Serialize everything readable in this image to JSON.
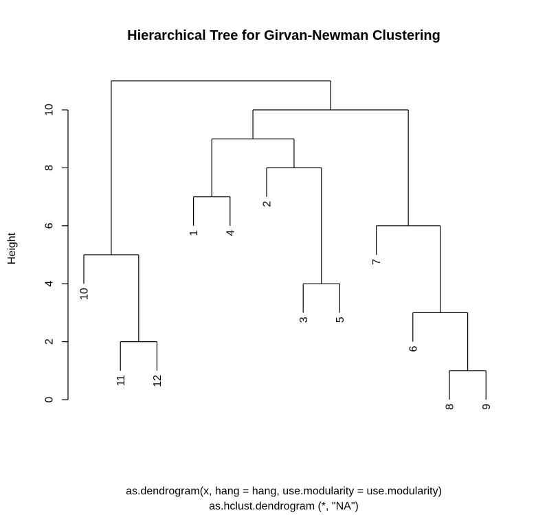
{
  "chart_data": {
    "type": "dendrogram",
    "title": "Hierarchical Tree for Girvan-Newman Clustering",
    "ylabel": "Height",
    "xlabel": "as.dendrogram(x, hang = hang, use.modularity = use.modularity)",
    "sublabel": "as.hclust.dendrogram (*, \"NA\")",
    "ylim": [
      0,
      11
    ],
    "yticks": [
      0,
      2,
      4,
      6,
      8,
      10
    ],
    "leaf_order": [
      "10",
      "11",
      "12",
      "1",
      "4",
      "2",
      "3",
      "5",
      "7",
      "6",
      "8",
      "9"
    ],
    "merges": [
      {
        "children": [
          "8",
          "9"
        ],
        "height": 1
      },
      {
        "children": [
          "11",
          "12"
        ],
        "height": 2
      },
      {
        "children": [
          "3",
          "5"
        ],
        "height": 4
      },
      {
        "children": [
          "6",
          "8+9"
        ],
        "height": 3
      },
      {
        "children": [
          "10",
          "11+12"
        ],
        "height": 5
      },
      {
        "children": [
          "7",
          "6+8+9"
        ],
        "height": 6
      },
      {
        "children": [
          "1",
          "4"
        ],
        "height": 7
      },
      {
        "children": [
          "2",
          "3+5"
        ],
        "height": 8
      },
      {
        "children": [
          "1+4",
          "2+3+5"
        ],
        "height": 9
      },
      {
        "children": [
          "1+4+2+3+5",
          "7+6+8+9"
        ],
        "height": 10
      },
      {
        "children": [
          "10+11+12",
          "rest"
        ],
        "height": 11
      }
    ],
    "tree": {
      "h": 11,
      "children": [
        {
          "h": 5,
          "children": [
            {
              "leaf": "10",
              "h": 4
            },
            {
              "h": 2,
              "children": [
                {
                  "leaf": "11",
                  "h": 1
                },
                {
                  "leaf": "12",
                  "h": 1
                }
              ]
            }
          ]
        },
        {
          "h": 10,
          "children": [
            {
              "h": 9,
              "children": [
                {
                  "h": 7,
                  "children": [
                    {
                      "leaf": "1",
                      "h": 6
                    },
                    {
                      "leaf": "4",
                      "h": 6
                    }
                  ]
                },
                {
                  "h": 8,
                  "children": [
                    {
                      "leaf": "2",
                      "h": 7
                    },
                    {
                      "h": 4,
                      "children": [
                        {
                          "leaf": "3",
                          "h": 3
                        },
                        {
                          "leaf": "5",
                          "h": 3
                        }
                      ]
                    }
                  ]
                }
              ]
            },
            {
              "h": 6,
              "children": [
                {
                  "leaf": "7",
                  "h": 5
                },
                {
                  "h": 3,
                  "children": [
                    {
                      "leaf": "6",
                      "h": 2
                    },
                    {
                      "h": 1,
                      "children": [
                        {
                          "leaf": "8",
                          "h": 0
                        },
                        {
                          "leaf": "9",
                          "h": 0
                        }
                      ]
                    }
                  ]
                }
              ]
            }
          ]
        }
      ]
    }
  }
}
